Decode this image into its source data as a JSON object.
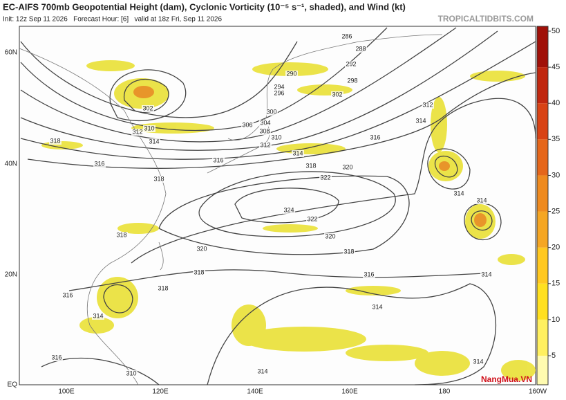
{
  "header": {
    "title": "EC-AIFS 700mb Geopotential Height (dam), Cyclonic Vorticity (10⁻⁵ s⁻¹, shaded), and Wind (kt)",
    "subtitle": "Init: 12z Sep 11 2026   Forecast Hour: [6]   valid at 18z Fri, Sep 11 2026",
    "source": "TROPICALTIDBITS.COM"
  },
  "map": {
    "lon_labels": [
      "100E",
      "120E",
      "140E",
      "160E",
      "180",
      "160W"
    ],
    "lat_labels": [
      "60N",
      "40N",
      "20N",
      "EQ"
    ],
    "contour_labels": [
      286,
      288,
      292,
      290,
      294,
      296,
      298,
      302,
      302,
      300,
      304,
      306,
      308,
      310,
      312,
      310,
      312,
      312,
      314,
      318,
      314,
      314,
      316,
      316,
      316,
      318,
      320,
      318,
      322,
      324,
      322,
      314,
      314,
      318,
      320,
      320,
      318,
      318,
      316,
      314,
      316,
      314,
      314,
      318,
      316,
      310,
      314,
      314
    ]
  },
  "colorbar": {
    "ticks": [
      5,
      10,
      15,
      20,
      25,
      30,
      35,
      40,
      45,
      50
    ],
    "bounds": [
      0,
      50
    ],
    "colors": [
      "#fffbb0",
      "#fff060",
      "#ffe020",
      "#ffc820",
      "#f5a623",
      "#ef8a1e",
      "#e5661a",
      "#d84315",
      "#c0270f",
      "#a01008"
    ]
  },
  "logo": "NangMua.VN"
}
